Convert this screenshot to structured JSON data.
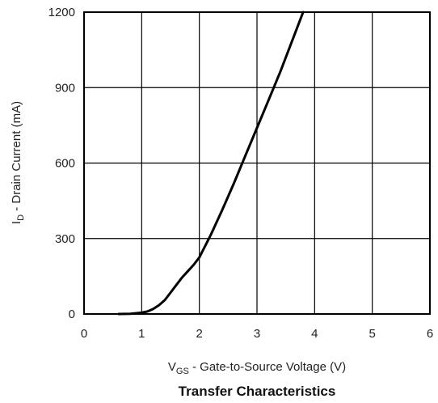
{
  "chart_data": {
    "type": "line",
    "title": "Transfer Characteristics",
    "xlabel": {
      "symbol": "V",
      "subscript": "GS",
      "text": " - Gate-to-Source Voltage (V)"
    },
    "ylabel": {
      "symbol": "I",
      "subscript": "D",
      "text": " - Drain Current (mA)"
    },
    "xlim": [
      0,
      6
    ],
    "ylim": [
      0,
      1200
    ],
    "xticks": [
      "0",
      "1",
      "2",
      "3",
      "4",
      "5",
      "6"
    ],
    "yticks": [
      "0",
      "300",
      "600",
      "900",
      "1200"
    ],
    "grid": true,
    "series": [
      {
        "color": "#000000",
        "x": [
          0.6,
          0.8,
          1.0,
          1.1,
          1.2,
          1.3,
          1.4,
          1.5,
          1.6,
          1.7,
          1.8,
          1.9,
          2.0,
          2.2,
          2.4,
          2.6,
          2.8,
          3.0,
          3.2,
          3.4,
          3.6,
          3.8
        ],
        "y": [
          0,
          1,
          5,
          10,
          20,
          35,
          55,
          85,
          115,
          145,
          170,
          195,
          225,
          315,
          415,
          520,
          630,
          740,
          850,
          960,
          1080,
          1200
        ]
      }
    ]
  }
}
